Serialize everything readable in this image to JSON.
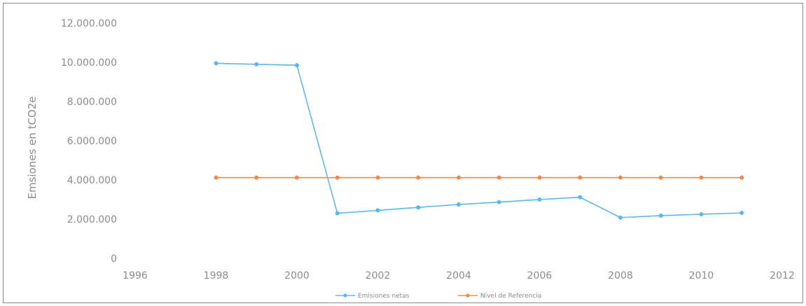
{
  "chart_data": {
    "type": "scatter",
    "title": "",
    "xlabel": "",
    "ylabel": "Emsiones en tCO2e",
    "xlim": [
      1996,
      2012
    ],
    "ylim": [
      0,
      12000000
    ],
    "x_ticks": [
      "1996",
      "1998",
      "2000",
      "2002",
      "2004",
      "2006",
      "2008",
      "2010",
      "2012"
    ],
    "x_tick_values": [
      1996,
      1998,
      2000,
      2002,
      2004,
      2006,
      2008,
      2010,
      2012
    ],
    "y_ticks": [
      "0",
      "2.000.000",
      "4.000.000",
      "6.000.000",
      "8.000.000",
      "10.000.000",
      "12.000.000"
    ],
    "y_tick_values": [
      0,
      2000000,
      4000000,
      6000000,
      8000000,
      10000000,
      12000000
    ],
    "grid": false,
    "legend_position": "bottom",
    "series": [
      {
        "name": "Emisiones netas",
        "color": "#5bb8e8",
        "x": [
          1998,
          1999,
          2000,
          2001,
          2002,
          2003,
          2004,
          2005,
          2006,
          2007,
          2008,
          2009,
          2010,
          2011
        ],
        "y": [
          9950000,
          9900000,
          9850000,
          2300000,
          2450000,
          2600000,
          2750000,
          2870000,
          3000000,
          3120000,
          2080000,
          2180000,
          2250000,
          2320000
        ]
      },
      {
        "name": "Nivel de Referencia",
        "color": "#f08a4b",
        "x": [
          1998,
          1999,
          2000,
          2001,
          2002,
          2003,
          2004,
          2005,
          2006,
          2007,
          2008,
          2009,
          2010,
          2011
        ],
        "y": [
          4120000,
          4120000,
          4120000,
          4120000,
          4120000,
          4120000,
          4120000,
          4120000,
          4120000,
          4120000,
          4120000,
          4120000,
          4120000,
          4120000
        ]
      }
    ]
  }
}
